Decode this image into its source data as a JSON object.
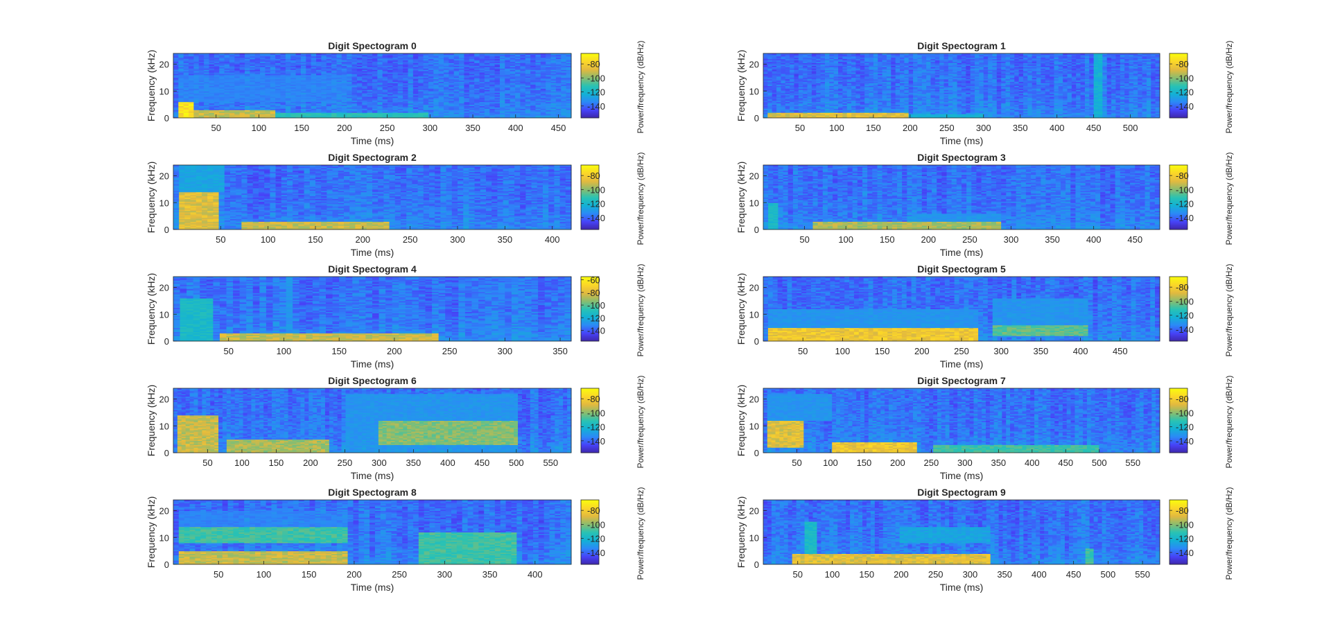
{
  "figure": {
    "xlabel": "Time (ms)",
    "ylabel": "Frequency (kHz)",
    "colorbar_label": "Power/frequency (dB/Hz)",
    "colormap": "parula",
    "colormap_colors": [
      "#3e26a8",
      "#4743f8",
      "#2c89f7",
      "#13b1d5",
      "#2ac2b3",
      "#8abd6f",
      "#e2b93f",
      "#fbd629",
      "#f9fb0e"
    ]
  },
  "chart_data": [
    {
      "type": "heatmap",
      "title": "Digit Spectogram 0",
      "xlim": [
        0,
        465
      ],
      "xticks": [
        50,
        100,
        150,
        200,
        250,
        300,
        350,
        400,
        450
      ],
      "ylim": [
        0,
        24
      ],
      "yticks": [
        0,
        10,
        20
      ],
      "clim": [
        -157,
        -65
      ],
      "cticks": [
        -80,
        -100,
        -120,
        -140
      ],
      "energy": [
        {
          "t": [
            5,
            25
          ],
          "f": [
            0,
            6
          ],
          "level": 0.95
        },
        {
          "t": [
            25,
            120
          ],
          "f": [
            0,
            3
          ],
          "level": 0.75
        },
        {
          "t": [
            120,
            300
          ],
          "f": [
            0,
            2
          ],
          "level": 0.5
        },
        {
          "t": [
            5,
            200
          ],
          "f": [
            6,
            16
          ],
          "level": 0.25
        }
      ]
    },
    {
      "type": "heatmap",
      "title": "Digit Spectogram 1",
      "xlim": [
        0,
        540
      ],
      "xticks": [
        50,
        100,
        150,
        200,
        250,
        300,
        350,
        400,
        450,
        500
      ],
      "ylim": [
        0,
        24
      ],
      "yticks": [
        0,
        10,
        20
      ],
      "clim": [
        -157,
        -65
      ],
      "cticks": [
        -80,
        -100,
        -120,
        -140
      ],
      "energy": [
        {
          "t": [
            5,
            200
          ],
          "f": [
            0,
            2
          ],
          "level": 0.8
        },
        {
          "t": [
            200,
            300
          ],
          "f": [
            0,
            1.5
          ],
          "level": 0.4
        },
        {
          "t": [
            450,
            462
          ],
          "f": [
            0,
            24
          ],
          "level": 0.4
        },
        {
          "t": [
            80,
            200
          ],
          "f": [
            8,
            14
          ],
          "level": 0.15
        }
      ]
    },
    {
      "type": "heatmap",
      "title": "Digit Spectogram 2",
      "xlim": [
        0,
        420
      ],
      "xticks": [
        50,
        100,
        150,
        200,
        250,
        300,
        350,
        400
      ],
      "ylim": [
        0,
        24
      ],
      "yticks": [
        0,
        10,
        20
      ],
      "clim": [
        -157,
        -65
      ],
      "cticks": [
        -80,
        -100,
        -120,
        -140
      ],
      "energy": [
        {
          "t": [
            5,
            50
          ],
          "f": [
            0,
            14
          ],
          "level": 0.8
        },
        {
          "t": [
            70,
            230
          ],
          "f": [
            0,
            3
          ],
          "level": 0.75
        },
        {
          "t": [
            5,
            55
          ],
          "f": [
            14,
            24
          ],
          "level": 0.35
        }
      ]
    },
    {
      "type": "heatmap",
      "title": "Digit Spectogram 3",
      "xlim": [
        0,
        480
      ],
      "xticks": [
        50,
        100,
        150,
        200,
        250,
        300,
        350,
        400,
        450
      ],
      "ylim": [
        0,
        24
      ],
      "yticks": [
        0,
        10,
        20
      ],
      "clim": [
        -157,
        -65
      ],
      "cticks": [
        -80,
        -100,
        -120,
        -140
      ],
      "energy": [
        {
          "t": [
            60,
            290
          ],
          "f": [
            0,
            3
          ],
          "level": 0.7
        },
        {
          "t": [
            5,
            20
          ],
          "f": [
            0,
            10
          ],
          "level": 0.45
        },
        {
          "t": [
            180,
            290
          ],
          "f": [
            3,
            6
          ],
          "level": 0.3
        }
      ]
    },
    {
      "type": "heatmap",
      "title": "Digit Spectogram 4",
      "xlim": [
        0,
        360
      ],
      "xticks": [
        50,
        100,
        150,
        200,
        250,
        300,
        350
      ],
      "ylim": [
        0,
        24
      ],
      "yticks": [
        0,
        10,
        20
      ],
      "clim": [
        -157,
        -55
      ],
      "cticks": [
        -60,
        -80,
        -100,
        -120,
        -140
      ],
      "energy": [
        {
          "t": [
            40,
            240
          ],
          "f": [
            0,
            3
          ],
          "level": 0.75
        },
        {
          "t": [
            5,
            35
          ],
          "f": [
            0,
            16
          ],
          "level": 0.45
        },
        {
          "t": [
            100,
            110
          ],
          "f": [
            0,
            24
          ],
          "level": 0.3
        }
      ]
    },
    {
      "type": "heatmap",
      "title": "Digit Spectogram 5",
      "xlim": [
        0,
        500
      ],
      "xticks": [
        50,
        100,
        150,
        200,
        250,
        300,
        350,
        400,
        450
      ],
      "ylim": [
        0,
        24
      ],
      "yticks": [
        0,
        10,
        20
      ],
      "clim": [
        -157,
        -65
      ],
      "cticks": [
        -80,
        -100,
        -120,
        -140
      ],
      "energy": [
        {
          "t": [
            5,
            270
          ],
          "f": [
            0,
            5
          ],
          "level": 0.85
        },
        {
          "t": [
            290,
            410
          ],
          "f": [
            2,
            6
          ],
          "level": 0.6
        },
        {
          "t": [
            5,
            270
          ],
          "f": [
            5,
            12
          ],
          "level": 0.3
        },
        {
          "t": [
            290,
            410
          ],
          "f": [
            6,
            16
          ],
          "level": 0.3
        }
      ]
    },
    {
      "type": "heatmap",
      "title": "Digit Spectogram 6",
      "xlim": [
        0,
        580
      ],
      "xticks": [
        50,
        100,
        150,
        200,
        250,
        300,
        350,
        400,
        450,
        500,
        550
      ],
      "ylim": [
        0,
        24
      ],
      "yticks": [
        0,
        10,
        20
      ],
      "clim": [
        -157,
        -65
      ],
      "cticks": [
        -80,
        -100,
        -120,
        -140
      ],
      "energy": [
        {
          "t": [
            5,
            65
          ],
          "f": [
            0,
            14
          ],
          "level": 0.75
        },
        {
          "t": [
            80,
            230
          ],
          "f": [
            0,
            5
          ],
          "level": 0.7
        },
        {
          "t": [
            300,
            500
          ],
          "f": [
            3,
            12
          ],
          "level": 0.65
        },
        {
          "t": [
            250,
            500
          ],
          "f": [
            0,
            22
          ],
          "level": 0.3
        }
      ]
    },
    {
      "type": "heatmap",
      "title": "Digit Spectogram 7",
      "xlim": [
        0,
        590
      ],
      "xticks": [
        50,
        100,
        150,
        200,
        250,
        300,
        350,
        400,
        450,
        500,
        550
      ],
      "ylim": [
        0,
        24
      ],
      "yticks": [
        0,
        10,
        20
      ],
      "clim": [
        -157,
        -65
      ],
      "cticks": [
        -80,
        -100,
        -120,
        -140
      ],
      "energy": [
        {
          "t": [
            5,
            60
          ],
          "f": [
            2,
            12
          ],
          "level": 0.8
        },
        {
          "t": [
            100,
            230
          ],
          "f": [
            0,
            4
          ],
          "level": 0.85
        },
        {
          "t": [
            250,
            500
          ],
          "f": [
            0,
            3
          ],
          "level": 0.55
        },
        {
          "t": [
            5,
            100
          ],
          "f": [
            12,
            22
          ],
          "level": 0.3
        }
      ]
    },
    {
      "type": "heatmap",
      "title": "Digit Spectogram 8",
      "xlim": [
        0,
        440
      ],
      "xticks": [
        50,
        100,
        150,
        200,
        250,
        300,
        350,
        400
      ],
      "ylim": [
        0,
        24
      ],
      "yticks": [
        0,
        10,
        20
      ],
      "clim": [
        -157,
        -65
      ],
      "cticks": [
        -80,
        -100,
        -120,
        -140
      ],
      "energy": [
        {
          "t": [
            5,
            195
          ],
          "f": [
            0,
            5
          ],
          "level": 0.75
        },
        {
          "t": [
            5,
            195
          ],
          "f": [
            8,
            14
          ],
          "level": 0.55
        },
        {
          "t": [
            270,
            380
          ],
          "f": [
            0,
            12
          ],
          "level": 0.55
        },
        {
          "t": [
            5,
            195
          ],
          "f": [
            14,
            20
          ],
          "level": 0.25
        }
      ]
    },
    {
      "type": "heatmap",
      "title": "Digit Spectogram 9",
      "xlim": [
        0,
        575
      ],
      "xticks": [
        50,
        100,
        150,
        200,
        250,
        300,
        350,
        400,
        450,
        500,
        550
      ],
      "ylim": [
        0,
        24
      ],
      "yticks": [
        0,
        10,
        20
      ],
      "clim": [
        -157,
        -65
      ],
      "cticks": [
        -80,
        -100,
        -120,
        -140
      ],
      "energy": [
        {
          "t": [
            40,
            330
          ],
          "f": [
            0,
            4
          ],
          "level": 0.8
        },
        {
          "t": [
            60,
            75
          ],
          "f": [
            0,
            16
          ],
          "level": 0.45
        },
        {
          "t": [
            470,
            482
          ],
          "f": [
            0,
            6
          ],
          "level": 0.55
        },
        {
          "t": [
            200,
            330
          ],
          "f": [
            8,
            14
          ],
          "level": 0.35
        }
      ]
    }
  ]
}
